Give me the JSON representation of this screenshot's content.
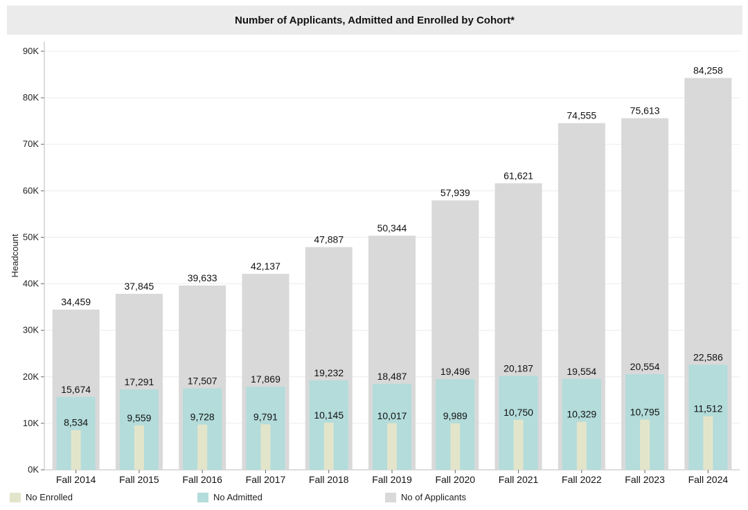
{
  "chart_data": {
    "type": "bar",
    "title": "Number of Applicants, Admitted and Enrolled by Cohort*",
    "ylabel": "Headcount",
    "xlabel": "",
    "ylim": [
      0,
      90000
    ],
    "yticks": [
      "0K",
      "10K",
      "20K",
      "30K",
      "40K",
      "50K",
      "60K",
      "70K",
      "80K",
      "90K"
    ],
    "grid": true,
    "legend_position": "bottom",
    "categories": [
      "Fall 2014",
      "Fall 2015",
      "Fall 2016",
      "Fall 2017",
      "Fall 2018",
      "Fall 2019",
      "Fall 2020",
      "Fall 2021",
      "Fall 2022",
      "Fall 2023",
      "Fall 2024"
    ],
    "series": [
      {
        "name": "No of Applicants",
        "color": "#d9d9d9",
        "values": [
          34459,
          37845,
          39633,
          42137,
          47887,
          50344,
          57939,
          61621,
          74555,
          75613,
          84258
        ],
        "labels": [
          "34,459",
          "37,845",
          "39,633",
          "42,137",
          "47,887",
          "50,344",
          "57,939",
          "61,621",
          "74,555",
          "75,613",
          "84,258"
        ]
      },
      {
        "name": "No Admitted",
        "color": "#b3dcdb",
        "values": [
          15674,
          17291,
          17507,
          17869,
          19232,
          18487,
          19496,
          20187,
          19554,
          20554,
          22586
        ],
        "labels": [
          "15,674",
          "17,291",
          "17,507",
          "17,869",
          "19,232",
          "18,487",
          "19,496",
          "20,187",
          "19,554",
          "20,554",
          "22,586"
        ]
      },
      {
        "name": "No Enrolled",
        "color": "#e3e5cb",
        "values": [
          8534,
          9559,
          9728,
          9791,
          10145,
          10017,
          9989,
          10750,
          10329,
          10795,
          11512
        ],
        "labels": [
          "8,534",
          "9,559",
          "9,728",
          "9,791",
          "10,145",
          "10,017",
          "9,989",
          "10,750",
          "10,329",
          "10,795",
          "11,512"
        ]
      }
    ],
    "legend": [
      {
        "name": "No Enrolled",
        "color": "#e3e5cb"
      },
      {
        "name": "No Admitted",
        "color": "#b3dcdb"
      },
      {
        "name": "No of Applicants",
        "color": "#d9d9d9"
      }
    ]
  }
}
